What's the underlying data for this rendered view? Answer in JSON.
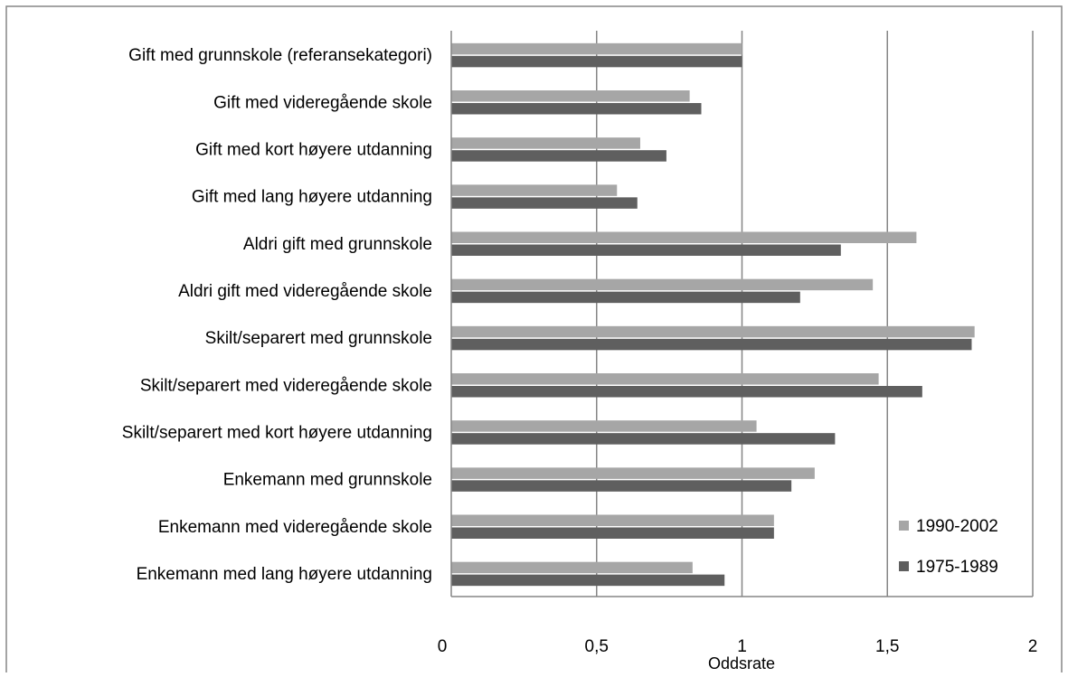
{
  "chart_data": {
    "type": "bar",
    "orientation": "horizontal",
    "title": "",
    "xlabel": "Oddsrate",
    "ylabel": "",
    "xlim": [
      0,
      2
    ],
    "x_ticks": [
      0,
      0.5,
      1,
      1.5,
      2
    ],
    "x_tick_labels": [
      "0",
      "0,5",
      "1",
      "1,5",
      "2"
    ],
    "grid": "vertical major gridlines",
    "legend_position": "bottom-right, inside plot",
    "categories": [
      "Gift med grunnskole (referansekategori)",
      "Gift med videregående skole",
      "Gift med kort høyere utdanning",
      "Gift med lang høyere utdanning",
      "Aldri gift med grunnskole",
      "Aldri gift med videregående skole",
      "Skilt/separert med grunnskole",
      "Skilt/separert med videregående skole",
      "Skilt/separert med kort høyere utdanning",
      "Enkemann med grunnskole",
      "Enkemann med videregående skole",
      "Enkemann med lang høyere utdanning"
    ],
    "series": [
      {
        "name": "1990-2002",
        "color": "#a6a6a6",
        "values": [
          1.0,
          0.82,
          0.65,
          0.57,
          1.6,
          1.45,
          1.8,
          1.47,
          1.05,
          1.25,
          1.11,
          0.83
        ]
      },
      {
        "name": "1975-1989",
        "color": "#5f5f5f",
        "values": [
          1.0,
          0.86,
          0.74,
          0.64,
          1.34,
          1.2,
          1.79,
          1.62,
          1.32,
          1.17,
          1.11,
          0.94
        ]
      }
    ],
    "legend_order": [
      0,
      1
    ],
    "frame_color": "#868686",
    "grid_color": "#868686"
  }
}
